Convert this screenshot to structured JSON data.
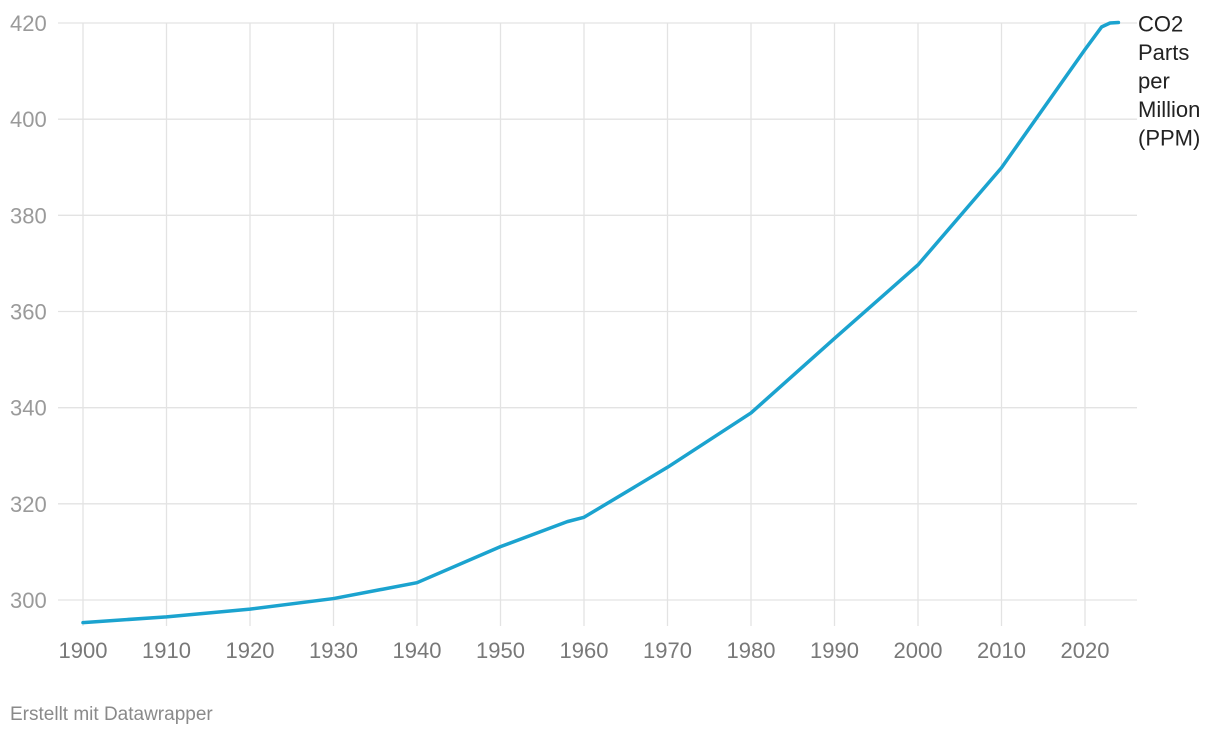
{
  "chart_data": {
    "type": "line",
    "xlabel": "",
    "ylabel": "",
    "xlim": [
      1900,
      2025
    ],
    "ylim": [
      295,
      420
    ],
    "x_ticks": [
      1900,
      1910,
      1920,
      1930,
      1940,
      1950,
      1960,
      1970,
      1980,
      1990,
      2000,
      2010,
      2020
    ],
    "y_ticks": [
      300,
      320,
      340,
      360,
      380,
      400,
      420
    ],
    "grid": true,
    "legend": "none",
    "series": [
      {
        "name": "CO2 Parts per Million (PPM)",
        "label_lines": [
          "CO2",
          "Parts",
          "per",
          "Million",
          "(PPM)"
        ],
        "color": "#1ba3cf",
        "x": [
          1900,
          1910,
          1920,
          1930,
          1940,
          1950,
          1958,
          1960,
          1970,
          1980,
          1990,
          2000,
          2010,
          2020,
          2022,
          2023,
          2024
        ],
        "y": [
          295.3,
          296.5,
          298.1,
          300.3,
          303.6,
          311.1,
          316.3,
          317.2,
          327.6,
          338.9,
          354.4,
          369.7,
          389.9,
          414.5,
          419.2,
          420.0,
          420.1
        ]
      }
    ]
  },
  "footer": {
    "credit": "Erstellt mit Datawrapper"
  }
}
